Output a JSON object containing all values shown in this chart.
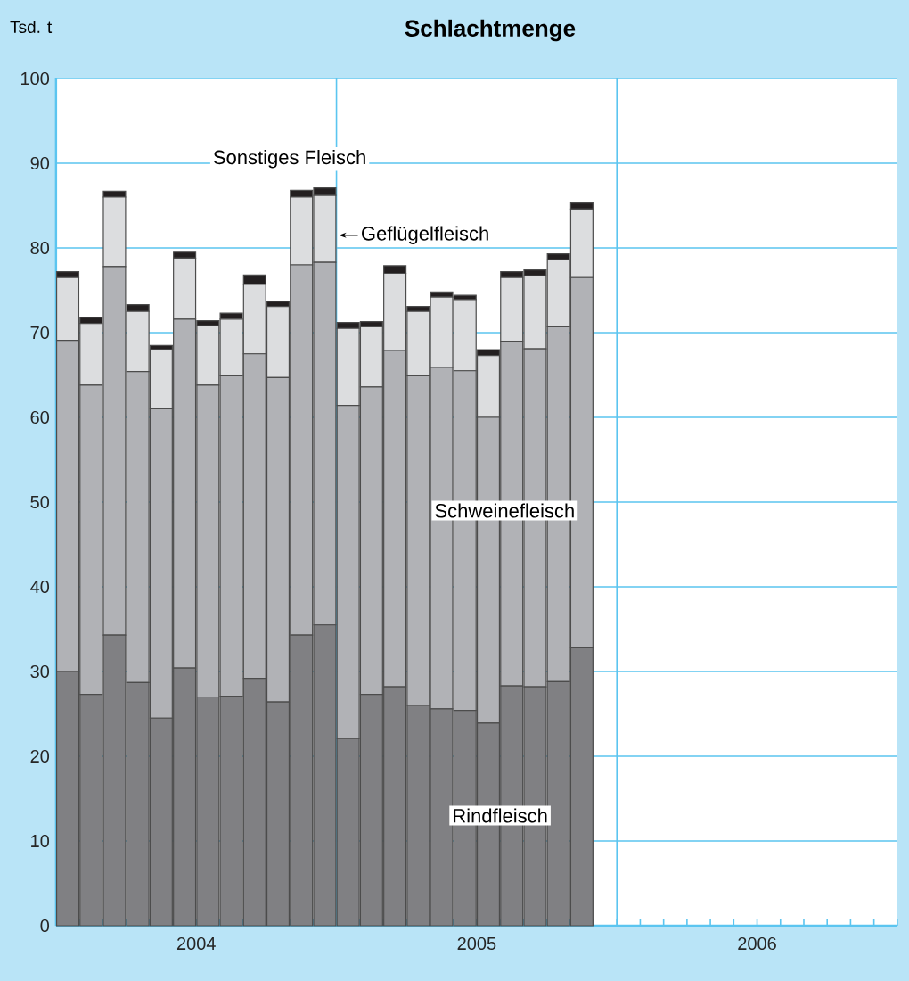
{
  "chart_data": {
    "type": "bar",
    "stacked": true,
    "title": "Schlachtmenge",
    "ylabel": "Tsd. t",
    "categories": [
      null,
      null,
      null,
      null,
      null,
      null,
      null,
      null,
      null,
      null,
      null,
      null,
      null,
      null,
      null,
      null,
      null,
      null,
      null,
      null,
      null,
      null,
      null,
      null,
      null,
      null,
      null,
      null,
      null,
      null,
      null,
      null,
      null,
      null,
      null,
      null
    ],
    "series": [
      {
        "name": "Rindfleisch",
        "color": "#808083",
        "values": [
          30.0,
          27.3,
          34.3,
          28.7,
          24.5,
          30.4,
          27.0,
          27.1,
          29.2,
          26.4,
          34.3,
          35.5,
          22.1,
          27.3,
          28.2,
          26.0,
          25.6,
          25.4,
          23.9,
          28.3,
          28.2,
          28.8,
          32.8,
          null,
          null,
          null,
          null,
          null,
          null,
          null,
          null,
          null,
          null,
          null,
          null,
          null
        ]
      },
      {
        "name": "Schweinefleisch",
        "color": "#b1b2b6",
        "values": [
          39.1,
          36.5,
          43.5,
          36.7,
          36.5,
          41.2,
          36.8,
          37.8,
          38.3,
          38.3,
          43.7,
          42.8,
          39.3,
          36.3,
          39.7,
          38.9,
          40.3,
          40.1,
          36.1,
          40.7,
          39.9,
          41.9,
          43.7,
          null,
          null,
          null,
          null,
          null,
          null,
          null,
          null,
          null,
          null,
          null,
          null,
          null
        ]
      },
      {
        "name": "Geflügelfleisch",
        "color": "#dcdddf",
        "values": [
          7.4,
          7.3,
          8.2,
          7.1,
          7.0,
          7.2,
          7.0,
          6.7,
          8.2,
          8.4,
          8.0,
          7.9,
          9.1,
          7.1,
          9.1,
          7.6,
          8.3,
          8.4,
          7.3,
          7.5,
          8.6,
          7.9,
          8.1,
          null,
          null,
          null,
          null,
          null,
          null,
          null,
          null,
          null,
          null,
          null,
          null,
          null
        ]
      },
      {
        "name": "Sonstiges Fleisch",
        "color": "#231f20",
        "values": [
          0.7,
          0.7,
          0.7,
          0.8,
          0.5,
          0.7,
          0.6,
          0.7,
          1.1,
          0.6,
          0.8,
          0.9,
          0.7,
          0.6,
          0.9,
          0.6,
          0.6,
          0.5,
          0.7,
          0.7,
          0.7,
          0.7,
          0.7,
          null,
          null,
          null,
          null,
          null,
          null,
          null,
          null,
          null,
          null,
          null,
          null,
          null
        ]
      }
    ],
    "ylim": [
      0,
      100
    ],
    "yticks": [
      0,
      10,
      20,
      30,
      40,
      50,
      60,
      70,
      80,
      90,
      100
    ],
    "grid": "y",
    "annotations": [
      "2004",
      "2005",
      "2006"
    ]
  }
}
